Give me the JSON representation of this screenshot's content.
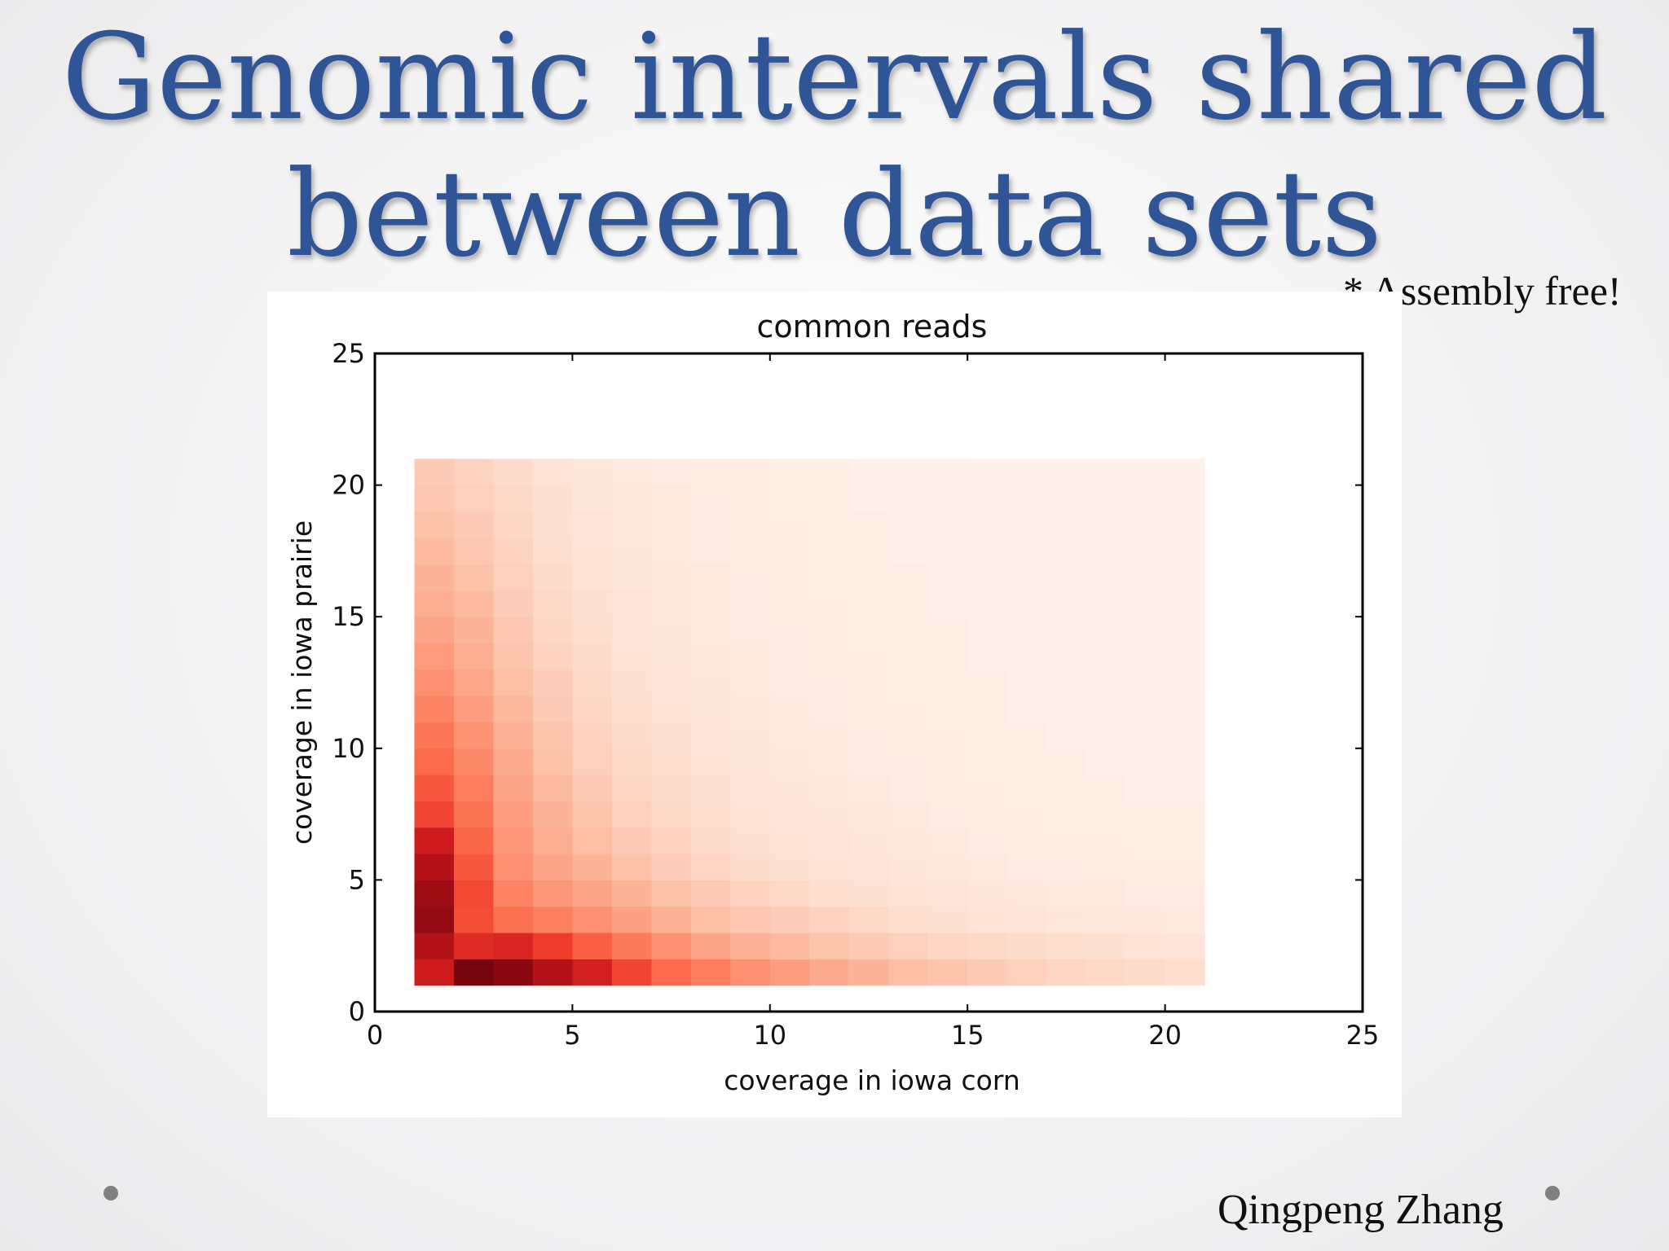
{
  "slide": {
    "title_line_1": "Genomic intervals shared",
    "title_line_2": "between data sets",
    "note": "* Assembly free!",
    "author": "Qingpeng Zhang"
  },
  "colors": {
    "title": "#2f5597",
    "bullet": "#808080"
  },
  "chart_data": {
    "type": "heatmap",
    "title": "common reads",
    "xlabel": "coverage in iowa corn",
    "ylabel": "coverage in iowa prairie",
    "xlim": [
      0,
      25
    ],
    "ylim": [
      0,
      25
    ],
    "xticks": [
      0,
      5,
      10,
      15,
      20,
      25
    ],
    "yticks": [
      0,
      5,
      10,
      15,
      20,
      25
    ],
    "grid": false,
    "colormap": "Reds",
    "x_bins": [
      1,
      21
    ],
    "y_bins": [
      1,
      21
    ],
    "bin_size": 1,
    "values_normalized": [
      [
        0.74,
        0.97,
        0.93,
        0.83,
        0.73,
        0.6,
        0.5,
        0.44,
        0.38,
        0.34,
        0.3,
        0.27,
        0.24,
        0.22,
        0.2,
        0.18,
        0.16,
        0.15,
        0.14,
        0.13
      ],
      [
        0.83,
        0.68,
        0.7,
        0.62,
        0.53,
        0.45,
        0.38,
        0.32,
        0.28,
        0.25,
        0.22,
        0.2,
        0.18,
        0.16,
        0.15,
        0.14,
        0.13,
        0.12,
        0.11,
        0.1
      ],
      [
        0.91,
        0.58,
        0.48,
        0.43,
        0.38,
        0.33,
        0.28,
        0.24,
        0.21,
        0.19,
        0.17,
        0.15,
        0.13,
        0.12,
        0.11,
        0.1,
        0.09,
        0.08,
        0.08,
        0.07
      ],
      [
        0.89,
        0.59,
        0.42,
        0.36,
        0.32,
        0.27,
        0.23,
        0.2,
        0.17,
        0.15,
        0.13,
        0.12,
        0.11,
        0.1,
        0.09,
        0.08,
        0.07,
        0.07,
        0.06,
        0.06
      ],
      [
        0.83,
        0.55,
        0.38,
        0.32,
        0.27,
        0.23,
        0.19,
        0.16,
        0.14,
        0.12,
        0.11,
        0.1,
        0.09,
        0.08,
        0.07,
        0.06,
        0.06,
        0.05,
        0.05,
        0.05
      ],
      [
        0.74,
        0.51,
        0.36,
        0.29,
        0.24,
        0.2,
        0.17,
        0.14,
        0.12,
        0.11,
        0.1,
        0.09,
        0.08,
        0.07,
        0.06,
        0.05,
        0.05,
        0.05,
        0.04,
        0.04
      ],
      [
        0.6,
        0.47,
        0.34,
        0.27,
        0.22,
        0.18,
        0.15,
        0.13,
        0.11,
        0.1,
        0.09,
        0.08,
        0.07,
        0.06,
        0.05,
        0.05,
        0.04,
        0.04,
        0.04,
        0.04
      ],
      [
        0.55,
        0.44,
        0.32,
        0.25,
        0.2,
        0.16,
        0.14,
        0.12,
        0.1,
        0.09,
        0.08,
        0.07,
        0.06,
        0.05,
        0.05,
        0.04,
        0.04,
        0.04,
        0.03,
        0.03
      ],
      [
        0.5,
        0.4,
        0.3,
        0.23,
        0.18,
        0.15,
        0.13,
        0.11,
        0.09,
        0.08,
        0.07,
        0.06,
        0.06,
        0.05,
        0.04,
        0.04,
        0.04,
        0.03,
        0.03,
        0.03
      ],
      [
        0.46,
        0.37,
        0.28,
        0.22,
        0.17,
        0.14,
        0.12,
        0.1,
        0.09,
        0.07,
        0.07,
        0.06,
        0.05,
        0.05,
        0.04,
        0.04,
        0.03,
        0.03,
        0.03,
        0.03
      ],
      [
        0.42,
        0.34,
        0.26,
        0.2,
        0.16,
        0.13,
        0.11,
        0.09,
        0.08,
        0.07,
        0.06,
        0.05,
        0.05,
        0.04,
        0.04,
        0.03,
        0.03,
        0.03,
        0.03,
        0.03
      ],
      [
        0.38,
        0.31,
        0.24,
        0.19,
        0.15,
        0.12,
        0.1,
        0.09,
        0.07,
        0.06,
        0.06,
        0.05,
        0.04,
        0.04,
        0.04,
        0.03,
        0.03,
        0.03,
        0.03,
        0.02
      ],
      [
        0.35,
        0.29,
        0.22,
        0.17,
        0.14,
        0.11,
        0.09,
        0.08,
        0.07,
        0.06,
        0.05,
        0.05,
        0.04,
        0.04,
        0.03,
        0.03,
        0.03,
        0.03,
        0.02,
        0.02
      ],
      [
        0.32,
        0.27,
        0.21,
        0.16,
        0.13,
        0.1,
        0.09,
        0.07,
        0.06,
        0.06,
        0.05,
        0.04,
        0.04,
        0.04,
        0.03,
        0.03,
        0.03,
        0.02,
        0.02,
        0.02
      ],
      [
        0.29,
        0.25,
        0.19,
        0.15,
        0.12,
        0.1,
        0.08,
        0.07,
        0.06,
        0.05,
        0.05,
        0.04,
        0.04,
        0.03,
        0.03,
        0.03,
        0.03,
        0.02,
        0.02,
        0.02
      ],
      [
        0.27,
        0.23,
        0.18,
        0.14,
        0.11,
        0.09,
        0.08,
        0.07,
        0.06,
        0.05,
        0.04,
        0.04,
        0.04,
        0.03,
        0.03,
        0.03,
        0.02,
        0.02,
        0.02,
        0.02
      ],
      [
        0.25,
        0.21,
        0.17,
        0.13,
        0.11,
        0.09,
        0.07,
        0.06,
        0.05,
        0.05,
        0.04,
        0.04,
        0.03,
        0.03,
        0.03,
        0.03,
        0.02,
        0.02,
        0.02,
        0.02
      ],
      [
        0.23,
        0.2,
        0.16,
        0.12,
        0.1,
        0.08,
        0.07,
        0.06,
        0.05,
        0.05,
        0.04,
        0.04,
        0.03,
        0.03,
        0.03,
        0.02,
        0.02,
        0.02,
        0.02,
        0.02
      ],
      [
        0.21,
        0.18,
        0.15,
        0.12,
        0.09,
        0.08,
        0.07,
        0.06,
        0.05,
        0.04,
        0.04,
        0.03,
        0.03,
        0.03,
        0.03,
        0.02,
        0.02,
        0.02,
        0.02,
        0.02
      ],
      [
        0.2,
        0.17,
        0.14,
        0.11,
        0.09,
        0.07,
        0.06,
        0.05,
        0.05,
        0.04,
        0.04,
        0.03,
        0.03,
        0.03,
        0.02,
        0.02,
        0.02,
        0.02,
        0.02,
        0.02
      ]
    ]
  }
}
